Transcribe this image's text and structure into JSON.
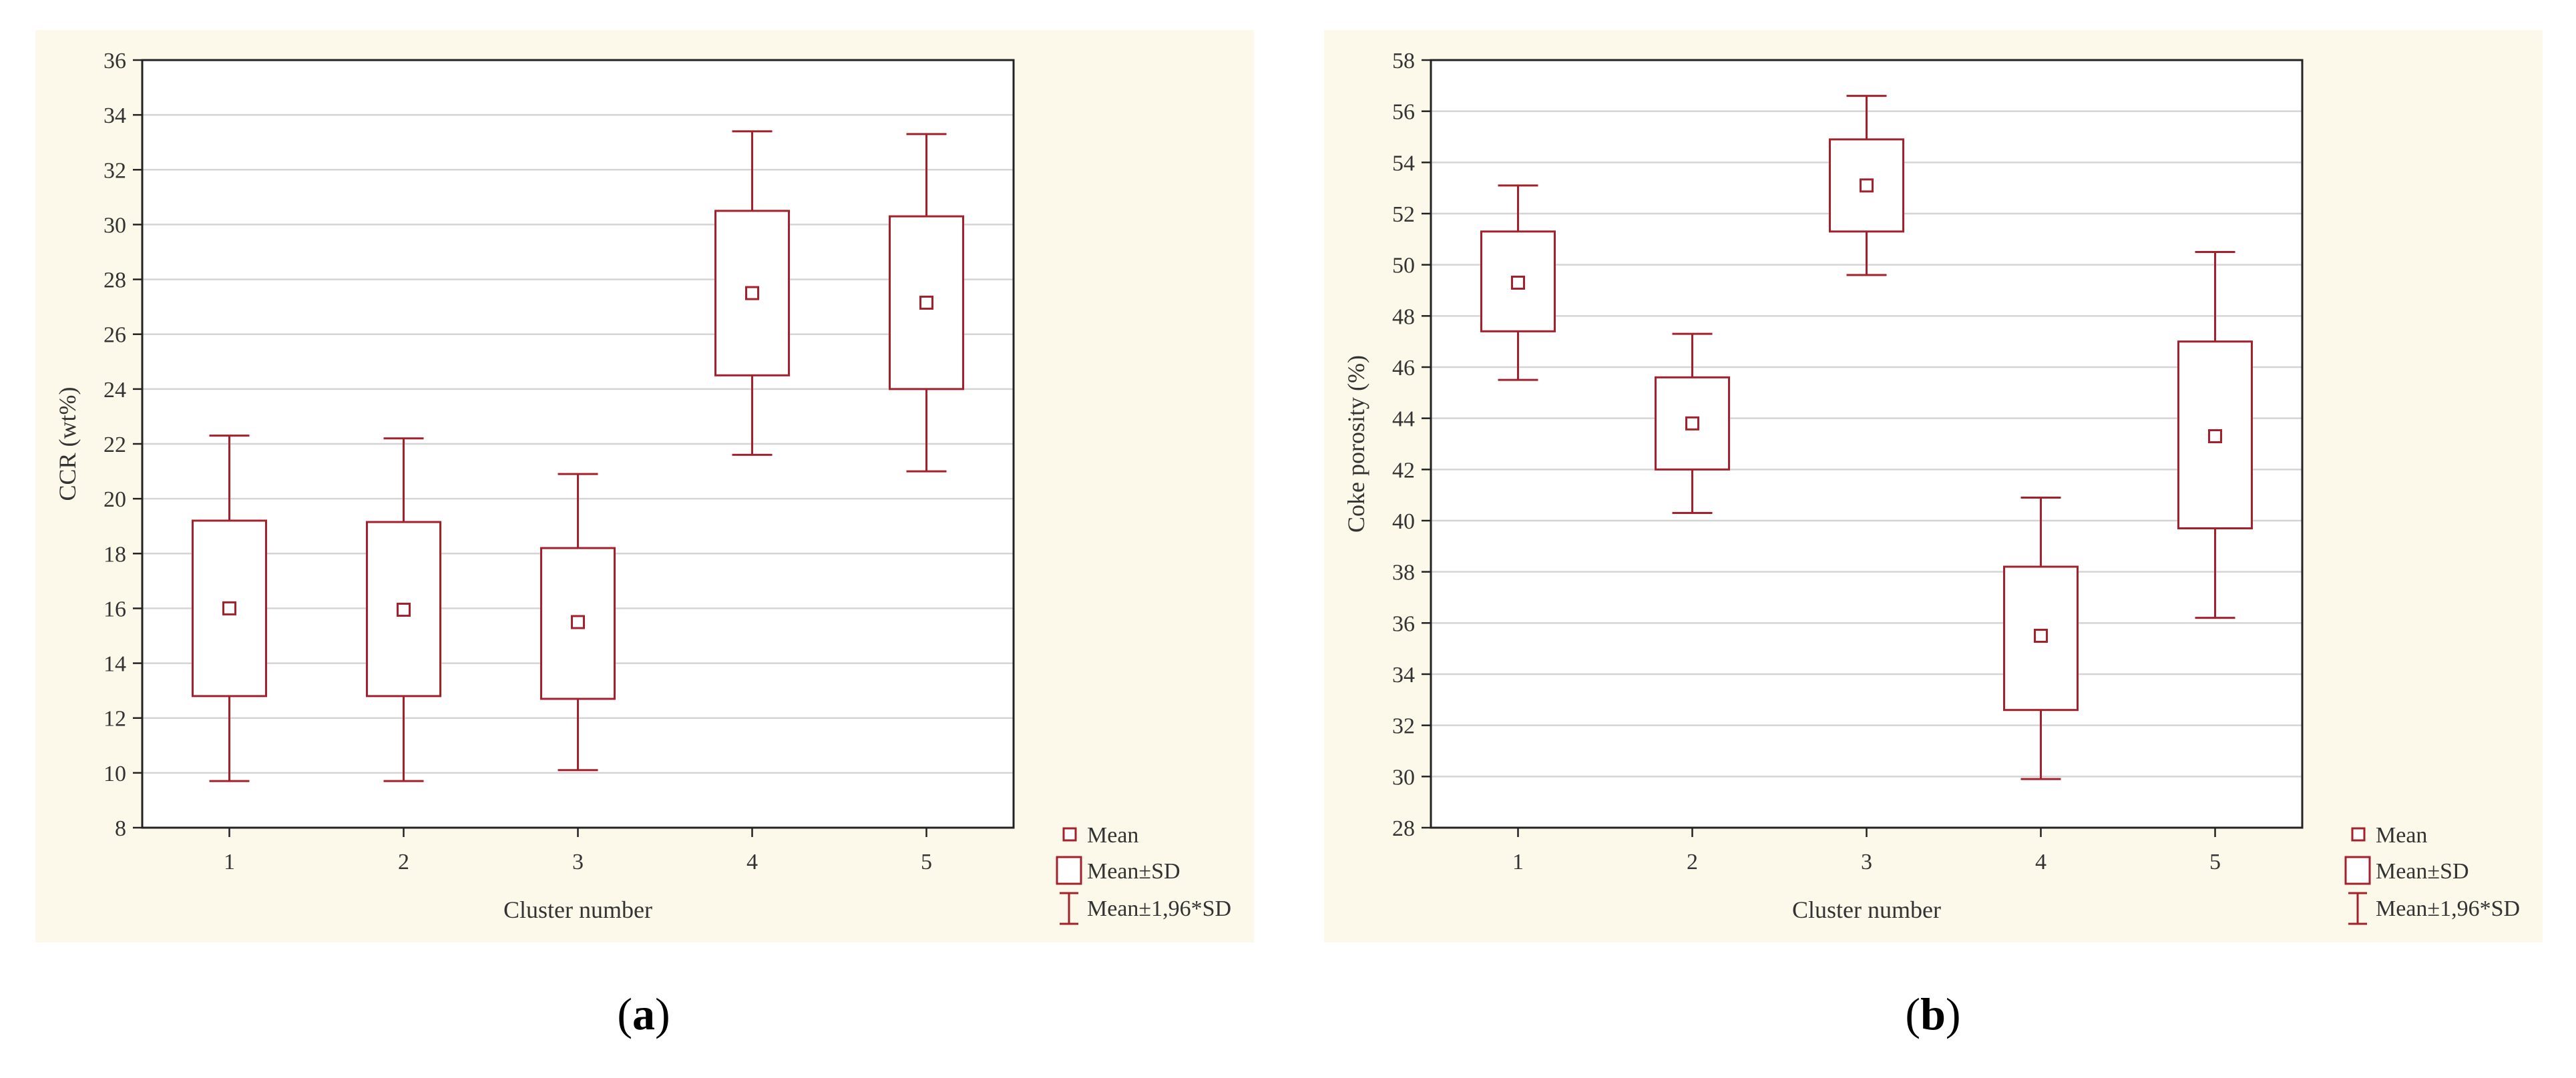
{
  "chart_data": [
    {
      "type": "boxplot",
      "categories": [
        "1",
        "2",
        "3",
        "4",
        "5"
      ],
      "xlabel": "Cluster number",
      "ylabel": "CCR (wt%)",
      "ylim": [
        8,
        36
      ],
      "yticks": [
        8,
        10,
        12,
        14,
        16,
        18,
        20,
        22,
        24,
        26,
        28,
        30,
        32,
        34,
        36
      ],
      "grid": true,
      "legend_position": "outside-bottom-right",
      "legend": [
        "Mean",
        "Mean±SD",
        "Mean±1,96*SD"
      ],
      "series": [
        {
          "category": "1",
          "mean": 16.0,
          "mean_minus_sd": 12.8,
          "mean_plus_sd": 19.2,
          "mean_minus_196sd": 9.7,
          "mean_plus_196sd": 22.3
        },
        {
          "category": "2",
          "mean": 15.95,
          "mean_minus_sd": 12.8,
          "mean_plus_sd": 19.15,
          "mean_minus_196sd": 9.7,
          "mean_plus_196sd": 22.2
        },
        {
          "category": "3",
          "mean": 15.5,
          "mean_minus_sd": 12.7,
          "mean_plus_sd": 18.2,
          "mean_minus_196sd": 10.1,
          "mean_plus_196sd": 20.9
        },
        {
          "category": "4",
          "mean": 27.5,
          "mean_minus_sd": 24.5,
          "mean_plus_sd": 30.5,
          "mean_minus_196sd": 21.6,
          "mean_plus_196sd": 33.4
        },
        {
          "category": "5",
          "mean": 27.15,
          "mean_minus_sd": 24.0,
          "mean_plus_sd": 30.3,
          "mean_minus_196sd": 21.0,
          "mean_plus_196sd": 33.3
        }
      ],
      "color": "#a5202a",
      "caption_label": "a"
    },
    {
      "type": "boxplot",
      "categories": [
        "1",
        "2",
        "3",
        "4",
        "5"
      ],
      "xlabel": "Cluster number",
      "ylabel": "Coke porosity (%)",
      "ylim": [
        28,
        58
      ],
      "yticks": [
        28,
        30,
        32,
        34,
        36,
        38,
        40,
        42,
        44,
        46,
        48,
        50,
        52,
        54,
        56,
        58
      ],
      "grid": true,
      "legend_position": "outside-bottom-right",
      "legend": [
        "Mean",
        "Mean±SD",
        "Mean±1,96*SD"
      ],
      "series": [
        {
          "category": "1",
          "mean": 49.3,
          "mean_minus_sd": 47.4,
          "mean_plus_sd": 51.3,
          "mean_minus_196sd": 45.5,
          "mean_plus_196sd": 53.1
        },
        {
          "category": "2",
          "mean": 43.8,
          "mean_minus_sd": 42.0,
          "mean_plus_sd": 45.6,
          "mean_minus_196sd": 40.3,
          "mean_plus_196sd": 47.3
        },
        {
          "category": "3",
          "mean": 53.1,
          "mean_minus_sd": 51.3,
          "mean_plus_sd": 54.9,
          "mean_minus_196sd": 49.6,
          "mean_plus_196sd": 56.6
        },
        {
          "category": "4",
          "mean": 35.5,
          "mean_minus_sd": 32.6,
          "mean_plus_sd": 38.2,
          "mean_minus_196sd": 29.9,
          "mean_plus_196sd": 40.9
        },
        {
          "category": "5",
          "mean": 43.3,
          "mean_minus_sd": 39.7,
          "mean_plus_sd": 47.0,
          "mean_minus_196sd": 36.2,
          "mean_plus_196sd": 50.5
        }
      ],
      "color": "#a5202a",
      "caption_label": "b"
    }
  ]
}
